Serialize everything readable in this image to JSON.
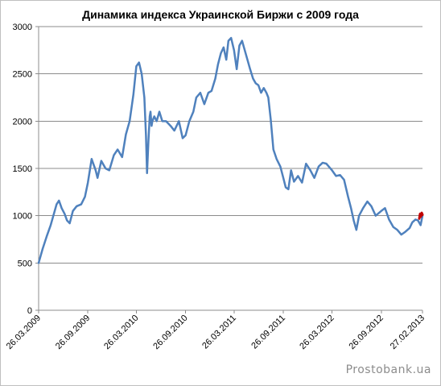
{
  "chart_data": {
    "type": "line",
    "title": "Динамика индекса Украинской Биржи с 2009  года",
    "xlabel": "",
    "ylabel": "",
    "ylim": [
      0,
      3000
    ],
    "yticks": [
      "0",
      "500",
      "1000",
      "1500",
      "2000",
      "2500",
      "3000"
    ],
    "xlim": [
      "2009-03-26",
      "2013-02-27"
    ],
    "xticks": [
      "26.03.2009",
      "26.09.2009",
      "26.03.2010",
      "26.09.2010",
      "26.03.2011",
      "26.09.2011",
      "26.03.2012",
      "26.09.2012",
      "27.02.2013"
    ],
    "grid": "horizontal",
    "legend": "none",
    "series": [
      {
        "color": "#4f81bd",
        "x": [
          "2009-03-26",
          "2009-04-10",
          "2009-04-25",
          "2009-05-10",
          "2009-05-20",
          "2009-06-01",
          "2009-06-10",
          "2009-06-20",
          "2009-07-01",
          "2009-07-10",
          "2009-07-20",
          "2009-08-01",
          "2009-08-15",
          "2009-09-01",
          "2009-09-15",
          "2009-09-26",
          "2009-10-10",
          "2009-10-25",
          "2009-11-01",
          "2009-11-15",
          "2009-12-01",
          "2009-12-15",
          "2010-01-01",
          "2010-01-15",
          "2010-02-01",
          "2010-02-15",
          "2010-03-01",
          "2010-03-15",
          "2010-03-26",
          "2010-04-05",
          "2010-04-15",
          "2010-04-25",
          "2010-05-01",
          "2010-05-05",
          "2010-05-10",
          "2010-05-15",
          "2010-05-18",
          "2010-05-22",
          "2010-05-25",
          "2010-06-01",
          "2010-06-10",
          "2010-06-20",
          "2010-07-01",
          "2010-07-15",
          "2010-08-01",
          "2010-08-15",
          "2010-09-01",
          "2010-09-15",
          "2010-09-26",
          "2010-10-10",
          "2010-10-25",
          "2010-11-05",
          "2010-11-20",
          "2010-12-05",
          "2010-12-20",
          "2011-01-01",
          "2011-01-15",
          "2011-01-25",
          "2011-02-05",
          "2011-02-15",
          "2011-02-25",
          "2011-03-05",
          "2011-03-15",
          "2011-03-26",
          "2011-04-05",
          "2011-04-15",
          "2011-04-25",
          "2011-05-05",
          "2011-05-15",
          "2011-05-25",
          "2011-06-05",
          "2011-06-15",
          "2011-06-25",
          "2011-07-05",
          "2011-07-15",
          "2011-07-25",
          "2011-08-01",
          "2011-08-10",
          "2011-08-20",
          "2011-09-01",
          "2011-09-15",
          "2011-09-26",
          "2011-10-05",
          "2011-10-15",
          "2011-10-25",
          "2011-11-05",
          "2011-11-20",
          "2011-12-05",
          "2011-12-20",
          "2012-01-05",
          "2012-01-20",
          "2012-02-05",
          "2012-02-20",
          "2012-03-05",
          "2012-03-26",
          "2012-04-10",
          "2012-04-25",
          "2012-05-10",
          "2012-05-25",
          "2012-06-05",
          "2012-06-15",
          "2012-06-25",
          "2012-07-05",
          "2012-07-20",
          "2012-08-05",
          "2012-08-20",
          "2012-09-05",
          "2012-09-26",
          "2012-10-10",
          "2012-10-25",
          "2012-11-10",
          "2012-11-25",
          "2012-12-10",
          "2012-12-25",
          "2013-01-10",
          "2013-01-20",
          "2013-02-01",
          "2013-02-10",
          "2013-02-20",
          "2013-02-27"
        ],
        "values": [
          500,
          650,
          780,
          900,
          1000,
          1120,
          1160,
          1080,
          1020,
          950,
          920,
          1050,
          1100,
          1120,
          1200,
          1350,
          1600,
          1480,
          1400,
          1580,
          1500,
          1480,
          1640,
          1700,
          1620,
          1860,
          2000,
          2280,
          2580,
          2620,
          2500,
          2250,
          1850,
          1450,
          1780,
          2050,
          2100,
          1950,
          2000,
          2050,
          2000,
          2100,
          2000,
          2000,
          1950,
          1900,
          2000,
          1820,
          1850,
          2000,
          2100,
          2250,
          2300,
          2180,
          2300,
          2320,
          2450,
          2600,
          2720,
          2780,
          2650,
          2850,
          2880,
          2750,
          2550,
          2800,
          2850,
          2750,
          2650,
          2550,
          2450,
          2400,
          2380,
          2300,
          2350,
          2300,
          2250,
          2020,
          1700,
          1600,
          1520,
          1400,
          1300,
          1280,
          1480,
          1360,
          1420,
          1350,
          1550,
          1480,
          1400,
          1520,
          1560,
          1550,
          1480,
          1420,
          1430,
          1380,
          1200,
          1080,
          950,
          850,
          1000,
          1080,
          1150,
          1100,
          1000,
          1050,
          1080,
          960,
          880,
          850,
          800,
          830,
          870,
          930,
          960,
          950,
          900,
          1000
        ]
      },
      {
        "color": "#c00000",
        "x": [
          "2013-02-15",
          "2013-02-18",
          "2013-02-21",
          "2013-02-24",
          "2013-02-27"
        ],
        "values": [
          970,
          1020,
          990,
          1030,
          1010
        ]
      }
    ]
  },
  "watermark": "Prostobank.ua"
}
